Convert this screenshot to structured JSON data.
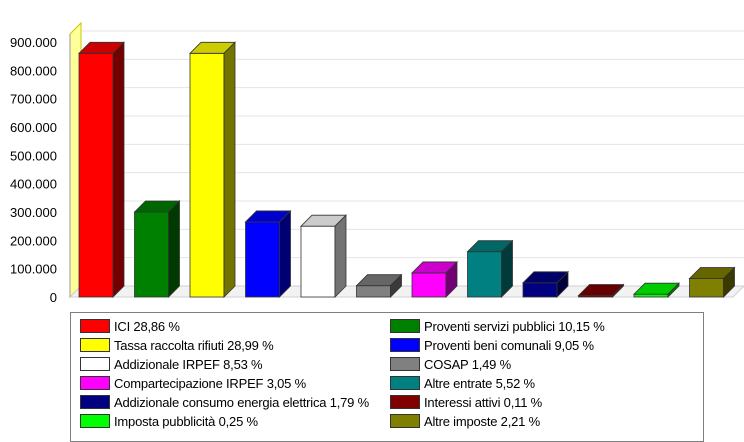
{
  "chart_data": {
    "type": "bar",
    "title": "",
    "xlabel": "",
    "ylabel": "",
    "ylim": [
      0,
      900000
    ],
    "y_ticks": [
      "0",
      "100.000",
      "200.000",
      "300.000",
      "400.000",
      "500.000",
      "600.000",
      "700.000",
      "800.000",
      "900.000"
    ],
    "y_tick_values": [
      0,
      100000,
      200000,
      300000,
      400000,
      500000,
      600000,
      700000,
      800000,
      900000
    ],
    "grid": true,
    "legend_position": "bottom",
    "series": [
      {
        "label": "ICI 28,86 %",
        "value": 860000,
        "color": "#ff0000"
      },
      {
        "label": "Proventi servizi pubblici 10,15 %",
        "value": 300000,
        "color": "#008000"
      },
      {
        "label": "Tassa raccolta rifiuti 28,99 %",
        "value": 860000,
        "color": "#ffff00"
      },
      {
        "label": "Proventi beni comunali 9,05 %",
        "value": 265000,
        "color": "#0000ff"
      },
      {
        "label": "Addizionale IRPEF 8,53 %",
        "value": 250000,
        "color": "#ffffff"
      },
      {
        "label": "COSAP 1,49 %",
        "value": 40000,
        "color": "#808080"
      },
      {
        "label": "Compartecipazione IRPEF 3,05 %",
        "value": 85000,
        "color": "#ff00ff"
      },
      {
        "label": "Altre entrate 5,52 %",
        "value": 160000,
        "color": "#008080"
      },
      {
        "label": "Addizionale consumo energia elettrica 1,79 %",
        "value": 50000,
        "color": "#000080"
      },
      {
        "label": "Interessi attivi 0,11 %",
        "value": 5000,
        "color": "#800000"
      },
      {
        "label": "Imposta pubblicità 0,25 %",
        "value": 10000,
        "color": "#00ff00"
      },
      {
        "label": "Altre imposte 2,21 %",
        "value": 65000,
        "color": "#808000"
      }
    ]
  }
}
